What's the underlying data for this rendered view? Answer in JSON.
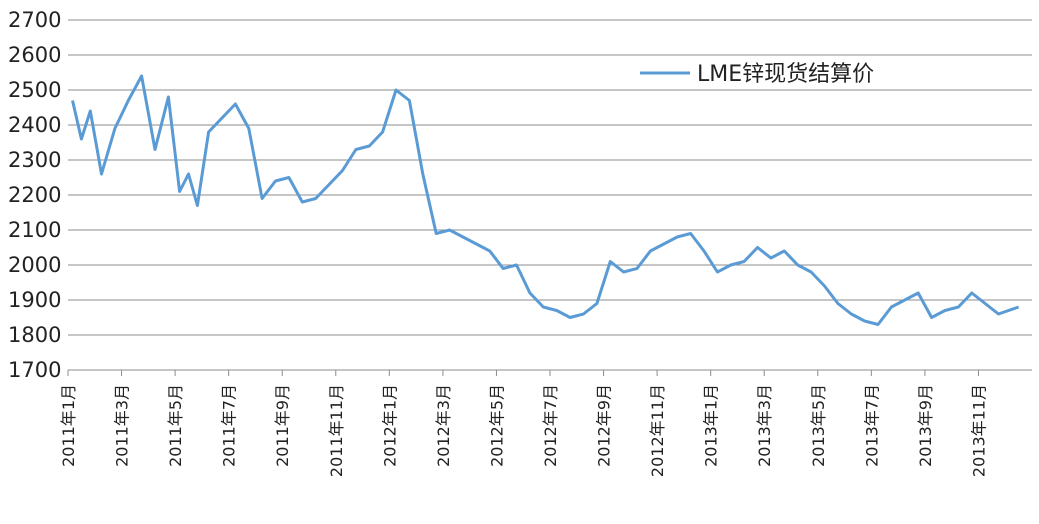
{
  "chart_data": {
    "type": "line",
    "title": "",
    "xlabel": "",
    "ylabel": "",
    "ylim": [
      1700,
      2700
    ],
    "yticks": [
      1700,
      1800,
      1900,
      2000,
      2100,
      2200,
      2300,
      2400,
      2500,
      2600,
      2700
    ],
    "grid": true,
    "legend_position": "top-right",
    "series_color": "#5b9bd5",
    "x_tick_labels": [
      "2011年1月",
      "2011年3月",
      "2011年5月",
      "2011年7月",
      "2011年9月",
      "2011年11月",
      "2012年1月",
      "2012年3月",
      "2012年5月",
      "2012年7月",
      "2012年9月",
      "2012年11月",
      "2013年1月",
      "2013年3月",
      "2013年5月",
      "2013年7月",
      "2013年9月",
      "2013年11月"
    ],
    "series": [
      {
        "name": "LME锌现货结算价",
        "x": [
          "2011-01",
          "2011-01",
          "2011-01",
          "2011-02",
          "2011-02",
          "2011-03",
          "2011-03",
          "2011-04",
          "2011-04",
          "2011-05",
          "2011-05",
          "2011-05",
          "2011-06",
          "2011-06",
          "2011-07",
          "2011-07",
          "2011-08",
          "2011-08",
          "2011-09",
          "2011-09",
          "2011-10",
          "2011-10",
          "2011-11",
          "2011-11",
          "2011-12",
          "2011-12",
          "2012-01",
          "2012-01",
          "2012-02",
          "2012-02",
          "2012-03",
          "2012-03",
          "2012-04",
          "2012-04",
          "2012-05",
          "2012-05",
          "2012-06",
          "2012-06",
          "2012-07",
          "2012-07",
          "2012-08",
          "2012-08",
          "2012-09",
          "2012-09",
          "2012-10",
          "2012-10",
          "2012-11",
          "2012-11",
          "2012-12",
          "2012-12",
          "2013-01",
          "2013-01",
          "2013-02",
          "2013-02",
          "2013-03",
          "2013-03",
          "2013-04",
          "2013-04",
          "2013-05",
          "2013-05",
          "2013-06",
          "2013-06",
          "2013-07",
          "2013-07",
          "2013-08",
          "2013-08",
          "2013-09",
          "2013-09",
          "2013-10",
          "2013-10",
          "2013-11",
          "2013-11",
          "2013-12"
        ],
        "values": [
          2470,
          2360,
          2440,
          2260,
          2390,
          2470,
          2540,
          2330,
          2480,
          2210,
          2260,
          2170,
          2380,
          2420,
          2460,
          2390,
          2190,
          2240,
          2250,
          2180,
          2190,
          2230,
          2270,
          2330,
          2340,
          2380,
          2500,
          2470,
          2260,
          2090,
          2100,
          2080,
          2060,
          2040,
          1990,
          2000,
          1920,
          1880,
          1870,
          1850,
          1860,
          1890,
          2010,
          1980,
          1990,
          2040,
          2060,
          2080,
          2090,
          2040,
          1980,
          2000,
          2010,
          2050,
          2020,
          2040,
          2000,
          1980,
          1940,
          1890,
          1860,
          1840,
          1830,
          1880,
          1900,
          1920,
          1850,
          1870,
          1880,
          1920,
          1890,
          1860,
          1880
        ]
      }
    ]
  }
}
